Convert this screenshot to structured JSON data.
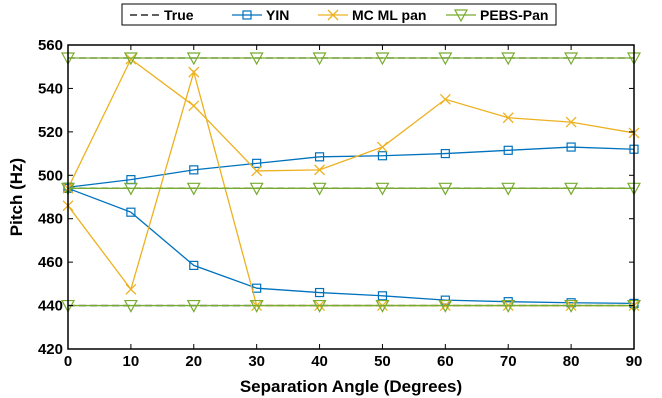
{
  "chart_data": {
    "type": "line",
    "xlabel": "Separation Angle (Degrees)",
    "ylabel": "Pitch (Hz)",
    "xlim": [
      0,
      90
    ],
    "ylim": [
      420,
      560
    ],
    "x_ticks": [
      0,
      10,
      20,
      30,
      40,
      50,
      60,
      70,
      80,
      90
    ],
    "y_ticks": [
      420,
      440,
      460,
      480,
      500,
      520,
      540,
      560
    ],
    "grid": false,
    "legend_position": "top",
    "x": [
      0,
      10,
      20,
      30,
      40,
      50,
      60,
      70,
      80,
      90
    ],
    "series": [
      {
        "name": "True",
        "color": "#000000",
        "style": "dashed",
        "marker": "none",
        "lines": [
          [
            440,
            440,
            440,
            440,
            440,
            440,
            440,
            440,
            440,
            440
          ],
          [
            494,
            494,
            494,
            494,
            494,
            494,
            494,
            494,
            494,
            494
          ],
          [
            554,
            554,
            554,
            554,
            554,
            554,
            554,
            554,
            554,
            554
          ]
        ]
      },
      {
        "name": "YIN",
        "color": "#0072BD",
        "style": "solid",
        "marker": "square",
        "lines": [
          [
            494.5,
            498,
            502.5,
            505.5,
            508.5,
            509,
            510,
            511.5,
            513,
            512
          ],
          [
            494,
            483,
            458.5,
            448,
            446,
            444.5,
            442.5,
            441.8,
            441.3,
            441
          ]
        ]
      },
      {
        "name": "MC ML pan",
        "color": "#EDB120",
        "style": "solid",
        "marker": "x",
        "lines": [
          [
            494,
            553.5,
            532,
            502,
            502.5,
            513,
            535,
            526.5,
            524.5,
            519.5
          ],
          [
            486,
            447.5,
            547.5,
            440,
            440,
            440,
            440,
            440,
            440,
            440
          ]
        ]
      },
      {
        "name": "PEBS-Pan",
        "color": "#77AC30",
        "style": "solid",
        "marker": "triangle-down",
        "lines": [
          [
            440,
            440,
            440,
            440,
            440,
            440,
            440,
            440,
            440,
            440
          ],
          [
            494,
            494,
            494,
            494,
            494,
            494,
            494,
            494,
            494,
            494
          ],
          [
            554,
            554,
            554,
            554,
            554,
            554,
            554,
            554,
            554,
            554
          ]
        ]
      }
    ]
  }
}
